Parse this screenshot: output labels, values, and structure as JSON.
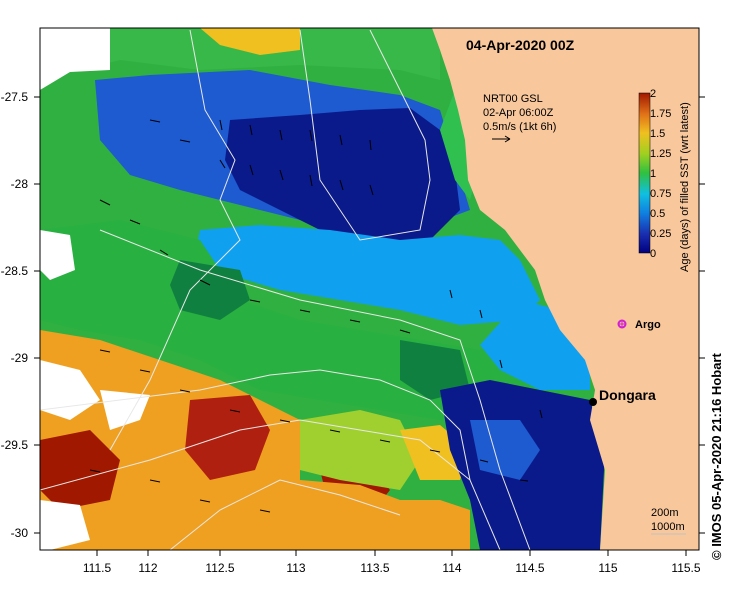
{
  "title": "04-Apr-2020 00Z",
  "current_info": {
    "line1": "NRT00 GSL",
    "line2": "02-Apr 06:00Z",
    "line3": "0.5m/s (1kt 6h)"
  },
  "axes": {
    "x_ticks": [
      "111.5",
      "112",
      "112.5",
      "113",
      "113.5",
      "114",
      "114.5",
      "115",
      "115.5"
    ],
    "y_ticks": [
      "-27.5",
      "-28",
      "-28.5",
      "-29",
      "-29.5",
      "-30"
    ]
  },
  "colorbar": {
    "label": "Age (days) of filled SST (wrt latest)",
    "ticks": [
      "2",
      "1.75",
      "1.5",
      "1.25",
      "1",
      "0.75",
      "0.5",
      "0.25",
      "0"
    ],
    "colors": [
      "#8b1a00",
      "#c8401a",
      "#f09a1a",
      "#e8d020",
      "#80d040",
      "#20b040",
      "#1890e0",
      "#2050c0",
      "#000080"
    ]
  },
  "places": {
    "argo": "Argo",
    "town": "Dongara"
  },
  "contour_labels": {
    "top": "200m",
    "bottom": "1000m"
  },
  "credit": "© IMOS 05-Apr-2020 21:16 Hobart",
  "colors": {
    "land": "#f8c79c",
    "argo_marker": "#d020d0"
  }
}
